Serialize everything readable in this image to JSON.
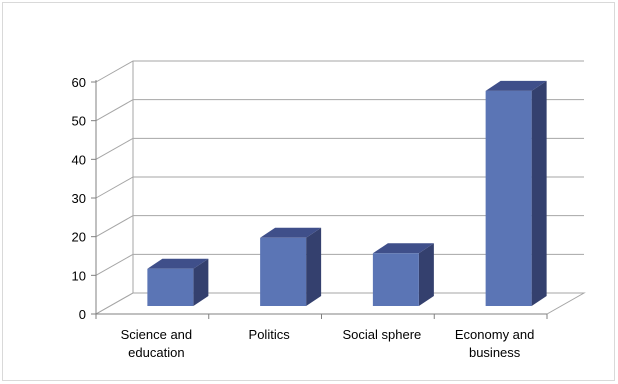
{
  "chart_data": {
    "type": "bar",
    "title": "",
    "xlabel": "",
    "ylabel": "",
    "categories": [
      [
        "Science and",
        "education"
      ],
      [
        "Politics"
      ],
      [
        "Social sphere"
      ],
      [
        "Economy and",
        "business"
      ]
    ],
    "values": [
      13,
      21,
      17,
      59
    ],
    "ylim": [
      0,
      60
    ],
    "yticks": [
      "0",
      "10",
      "20",
      "30",
      "40",
      "50",
      "60"
    ],
    "grid": true,
    "legend": "none",
    "colors": {
      "front": "#5b75b5",
      "side": "#34406e",
      "top": "#3f4f8a",
      "grid": "#a6a6a6",
      "axis": "#808080"
    }
  }
}
